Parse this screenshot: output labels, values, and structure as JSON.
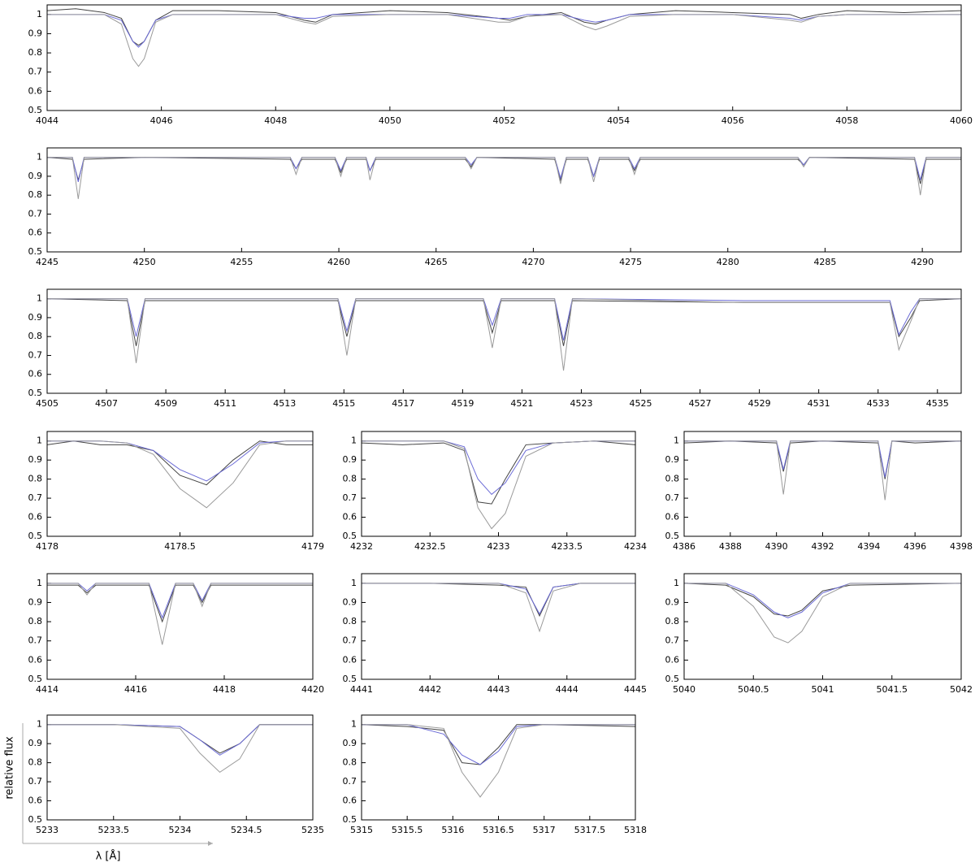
{
  "chart_data": [
    {
      "type": "line",
      "xlim": [
        4044,
        4060
      ],
      "xticks": [
        4044,
        4046,
        4048,
        4050,
        4052,
        4054,
        4056,
        4058,
        4060
      ],
      "ylim": [
        0.5,
        1.05
      ],
      "yticks": [
        0.5,
        0.6,
        0.7,
        0.8,
        0.9,
        1
      ],
      "x": [
        4044,
        4044.5,
        4045,
        4045.3,
        4045.5,
        4045.6,
        4045.7,
        4045.9,
        4046.2,
        4047,
        4048,
        4048.5,
        4048.7,
        4049,
        4050,
        4051,
        4051.9,
        4052.1,
        4052.4,
        4053,
        4053.4,
        4053.6,
        4053.8,
        4054.2,
        4055,
        4056,
        4057,
        4057.2,
        4057.5,
        4058,
        4059,
        4060
      ],
      "series": [
        {
          "color": "#444444",
          "values": [
            1.02,
            1.03,
            1.01,
            0.98,
            0.86,
            0.84,
            0.86,
            0.97,
            1.02,
            1.02,
            1.01,
            0.97,
            0.96,
            1.0,
            1.02,
            1.01,
            0.98,
            0.97,
            0.99,
            1.01,
            0.96,
            0.95,
            0.97,
            1.0,
            1.02,
            1.01,
            1.0,
            0.98,
            1.0,
            1.02,
            1.01,
            1.02
          ]
        },
        {
          "color": "#6b6bd6",
          "values": [
            1,
            1,
            1,
            0.97,
            0.86,
            0.83,
            0.86,
            0.97,
            1,
            1,
            1,
            0.98,
            0.98,
            1,
            1,
            1,
            0.98,
            0.98,
            1,
            1,
            0.97,
            0.96,
            0.97,
            1,
            1,
            1,
            0.98,
            0.97,
            0.99,
            1,
            1,
            1
          ]
        },
        {
          "color": "#9a9a9a",
          "values": [
            1,
            1,
            1,
            0.95,
            0.77,
            0.73,
            0.77,
            0.96,
            1,
            1,
            1,
            0.96,
            0.95,
            0.99,
            1,
            1,
            0.96,
            0.96,
            0.99,
            1,
            0.94,
            0.92,
            0.94,
            0.99,
            1,
            1,
            0.97,
            0.96,
            0.99,
            1,
            1,
            1
          ]
        }
      ]
    },
    {
      "type": "line",
      "xlim": [
        4245,
        4292
      ],
      "xticks": [
        4245,
        4250,
        4255,
        4260,
        4265,
        4270,
        4275,
        4280,
        4285,
        4290
      ],
      "ylim": [
        0.5,
        1.05
      ],
      "yticks": [
        0.5,
        0.6,
        0.7,
        0.8,
        0.9,
        1
      ],
      "x": [
        4245,
        4246.3,
        4246.6,
        4246.9,
        4250,
        4257.5,
        4257.8,
        4258.1,
        4259.8,
        4260.1,
        4260.4,
        4261.4,
        4261.6,
        4261.9,
        4266.5,
        4266.8,
        4267.1,
        4271.1,
        4271.4,
        4271.7,
        4272.8,
        4273.1,
        4273.4,
        4274.9,
        4275.2,
        4275.5,
        4283.6,
        4283.9,
        4284.2,
        4289.6,
        4289.9,
        4290.2,
        4292
      ],
      "series": [
        {
          "color": "#444444",
          "values": [
            1,
            0.99,
            0.88,
            0.99,
            1,
            0.99,
            0.94,
            0.99,
            0.99,
            0.92,
            0.99,
            0.99,
            0.93,
            0.99,
            0.99,
            0.95,
            1,
            0.99,
            0.88,
            0.99,
            0.99,
            0.9,
            0.99,
            0.99,
            0.93,
            0.99,
            0.99,
            0.96,
            1,
            0.99,
            0.86,
            0.99,
            0.99
          ]
        },
        {
          "color": "#6b6bd6",
          "values": [
            1,
            1,
            0.87,
            1,
            1,
            1,
            0.94,
            1,
            1,
            0.93,
            1,
            1,
            0.93,
            1,
            1,
            0.96,
            1,
            1,
            0.89,
            1,
            1,
            0.9,
            1,
            1,
            0.94,
            1,
            1,
            0.96,
            1,
            1,
            0.88,
            1,
            1
          ]
        },
        {
          "color": "#9a9a9a",
          "values": [
            1,
            1,
            0.78,
            1,
            1,
            1,
            0.91,
            1,
            1,
            0.9,
            1,
            1,
            0.88,
            1,
            1,
            0.94,
            1,
            1,
            0.86,
            1,
            1,
            0.87,
            1,
            1,
            0.91,
            1,
            1,
            0.95,
            1,
            1,
            0.8,
            1,
            1
          ]
        }
      ]
    },
    {
      "type": "line",
      "xlim": [
        4505,
        4535.8
      ],
      "xticks": [
        4505,
        4507,
        4509,
        4511,
        4513,
        4515,
        4517,
        4519,
        4521,
        4523,
        4525,
        4527,
        4529,
        4531,
        4533,
        4535
      ],
      "ylim": [
        0.5,
        1.05
      ],
      "yticks": [
        0.5,
        0.6,
        0.7,
        0.8,
        0.9,
        1
      ],
      "x": [
        4505,
        4507.7,
        4508,
        4508.3,
        4514.8,
        4515.1,
        4515.4,
        4519.7,
        4520,
        4520.3,
        4522.1,
        4522.4,
        4522.7,
        4528.5,
        4533.4,
        4533.7,
        4534.1,
        4534.4,
        4535.8
      ],
      "series": [
        {
          "color": "#444444",
          "values": [
            1,
            0.99,
            0.75,
            0.99,
            0.99,
            0.8,
            0.99,
            0.99,
            0.82,
            0.99,
            0.99,
            0.75,
            0.99,
            0.98,
            0.98,
            0.8,
            0.9,
            0.99,
            1
          ]
        },
        {
          "color": "#6b6bd6",
          "values": [
            1,
            1,
            0.8,
            1,
            1,
            0.83,
            1,
            1,
            0.86,
            1,
            1,
            0.78,
            1,
            0.99,
            0.99,
            0.81,
            0.93,
            1,
            1
          ]
        },
        {
          "color": "#9a9a9a",
          "values": [
            1,
            1,
            0.66,
            1,
            1,
            0.7,
            1,
            1,
            0.74,
            1,
            1,
            0.62,
            1,
            0.98,
            0.98,
            0.73,
            0.88,
            1,
            1
          ]
        }
      ]
    },
    {
      "type": "line",
      "xlim": [
        4178,
        4179
      ],
      "xticks": [
        4178,
        4178.5,
        4179
      ],
      "ylim": [
        0.5,
        1.05
      ],
      "yticks": [
        0.5,
        0.6,
        0.7,
        0.8,
        0.9,
        1
      ],
      "x": [
        4178,
        4178.1,
        4178.2,
        4178.3,
        4178.4,
        4178.5,
        4178.6,
        4178.7,
        4178.8,
        4178.9,
        4179
      ],
      "series": [
        {
          "color": "#444444",
          "values": [
            0.98,
            1,
            0.98,
            0.98,
            0.95,
            0.82,
            0.77,
            0.9,
            1,
            0.98,
            0.98
          ]
        },
        {
          "color": "#6b6bd6",
          "values": [
            1,
            1,
            1,
            0.99,
            0.95,
            0.85,
            0.79,
            0.88,
            0.99,
            1,
            1
          ]
        },
        {
          "color": "#9a9a9a",
          "values": [
            1,
            1,
            1,
            0.99,
            0.93,
            0.75,
            0.65,
            0.78,
            0.98,
            1,
            1
          ]
        }
      ]
    },
    {
      "type": "line",
      "xlim": [
        4232,
        4234
      ],
      "xticks": [
        4232,
        4232.5,
        4233,
        4233.5,
        4234
      ],
      "ylim": [
        0.5,
        1.05
      ],
      "yticks": [
        0.5,
        0.6,
        0.7,
        0.8,
        0.9,
        1
      ],
      "x": [
        4232,
        4232.3,
        4232.6,
        4232.75,
        4232.85,
        4232.95,
        4233.05,
        4233.2,
        4233.4,
        4233.7,
        4234
      ],
      "series": [
        {
          "color": "#444444",
          "values": [
            0.99,
            0.98,
            0.99,
            0.95,
            0.68,
            0.67,
            0.8,
            0.98,
            0.99,
            1,
            0.98
          ]
        },
        {
          "color": "#6b6bd6",
          "values": [
            1,
            1,
            1,
            0.97,
            0.8,
            0.72,
            0.78,
            0.95,
            0.99,
            1,
            1
          ]
        },
        {
          "color": "#9a9a9a",
          "values": [
            1,
            1,
            1,
            0.96,
            0.65,
            0.54,
            0.62,
            0.92,
            0.99,
            1,
            1
          ]
        }
      ]
    },
    {
      "type": "line",
      "xlim": [
        4386,
        4398
      ],
      "xticks": [
        4386,
        4388,
        4390,
        4392,
        4394,
        4396,
        4398
      ],
      "ylim": [
        0.5,
        1.05
      ],
      "yticks": [
        0.5,
        0.6,
        0.7,
        0.8,
        0.9,
        1
      ],
      "x": [
        4386,
        4388,
        4390,
        4390.3,
        4390.6,
        4392,
        4394.4,
        4394.7,
        4395,
        4396,
        4398
      ],
      "series": [
        {
          "color": "#444444",
          "values": [
            0.99,
            1,
            0.99,
            0.84,
            0.99,
            1,
            0.99,
            0.8,
            1,
            0.99,
            1
          ]
        },
        {
          "color": "#6b6bd6",
          "values": [
            1,
            1,
            1,
            0.85,
            1,
            1,
            1,
            0.81,
            1,
            1,
            1
          ]
        },
        {
          "color": "#9a9a9a",
          "values": [
            1,
            1,
            1,
            0.72,
            1,
            1,
            1,
            0.69,
            1,
            1,
            1
          ]
        }
      ]
    },
    {
      "type": "line",
      "xlim": [
        4414,
        4420
      ],
      "xticks": [
        4414,
        4416,
        4418,
        4420
      ],
      "ylim": [
        0.5,
        1.05
      ],
      "yticks": [
        0.5,
        0.6,
        0.7,
        0.8,
        0.9,
        1
      ],
      "x": [
        4414,
        4414.7,
        4414.9,
        4415.1,
        4416.3,
        4416.6,
        4416.9,
        4417.3,
        4417.5,
        4417.7,
        4420
      ],
      "series": [
        {
          "color": "#444444",
          "values": [
            0.99,
            0.99,
            0.95,
            0.99,
            0.99,
            0.8,
            0.99,
            0.99,
            0.9,
            0.99,
            0.99
          ]
        },
        {
          "color": "#6b6bd6",
          "values": [
            1,
            1,
            0.96,
            1,
            1,
            0.82,
            1,
            1,
            0.91,
            1,
            1
          ]
        },
        {
          "color": "#9a9a9a",
          "values": [
            1,
            1,
            0.94,
            1,
            1,
            0.68,
            1,
            1,
            0.88,
            1,
            1
          ]
        }
      ]
    },
    {
      "type": "line",
      "xlim": [
        4441,
        4445
      ],
      "xticks": [
        4441,
        4442,
        4443,
        4444,
        4445
      ],
      "ylim": [
        0.5,
        1.05
      ],
      "yticks": [
        0.5,
        0.6,
        0.7,
        0.8,
        0.9,
        1
      ],
      "x": [
        4441,
        4442,
        4443,
        4443.4,
        4443.6,
        4443.8,
        4444.2,
        4445
      ],
      "series": [
        {
          "color": "#444444",
          "values": [
            1,
            1,
            0.99,
            0.98,
            0.83,
            0.98,
            1,
            1
          ]
        },
        {
          "color": "#6b6bd6",
          "values": [
            1,
            1,
            1,
            0.97,
            0.84,
            0.98,
            1,
            1
          ]
        },
        {
          "color": "#9a9a9a",
          "values": [
            1,
            1,
            1,
            0.95,
            0.75,
            0.96,
            1,
            1
          ]
        }
      ]
    },
    {
      "type": "line",
      "xlim": [
        5040,
        5042
      ],
      "xticks": [
        5040,
        5040.5,
        5041,
        5041.5,
        5042
      ],
      "ylim": [
        0.5,
        1.05
      ],
      "yticks": [
        0.5,
        0.6,
        0.7,
        0.8,
        0.9,
        1
      ],
      "x": [
        5040,
        5040.3,
        5040.5,
        5040.65,
        5040.75,
        5040.85,
        5041,
        5041.2,
        5042
      ],
      "series": [
        {
          "color": "#444444",
          "values": [
            1,
            0.99,
            0.93,
            0.84,
            0.83,
            0.86,
            0.96,
            0.99,
            1
          ]
        },
        {
          "color": "#6b6bd6",
          "values": [
            1,
            1,
            0.94,
            0.85,
            0.82,
            0.85,
            0.95,
            1,
            1
          ]
        },
        {
          "color": "#9a9a9a",
          "values": [
            1,
            1,
            0.88,
            0.72,
            0.69,
            0.75,
            0.93,
            1,
            1
          ]
        }
      ]
    },
    {
      "type": "line",
      "xlim": [
        5233,
        5235
      ],
      "xticks": [
        5233,
        5233.5,
        5234,
        5234.5,
        5235
      ],
      "ylim": [
        0.5,
        1.05
      ],
      "yticks": [
        0.5,
        0.6,
        0.7,
        0.8,
        0.9,
        1
      ],
      "x": [
        5233,
        5233.5,
        5234,
        5234.15,
        5234.3,
        5234.45,
        5234.6,
        5235
      ],
      "series": [
        {
          "color": "#444444",
          "values": [
            1,
            1,
            0.99,
            0.92,
            0.85,
            0.9,
            1,
            1
          ]
        },
        {
          "color": "#6b6bd6",
          "values": [
            1,
            1,
            0.99,
            0.92,
            0.84,
            0.9,
            1,
            1
          ]
        },
        {
          "color": "#9a9a9a",
          "values": [
            1,
            1,
            0.98,
            0.85,
            0.75,
            0.82,
            1,
            1
          ]
        }
      ]
    },
    {
      "type": "line",
      "xlim": [
        5315,
        5318
      ],
      "xticks": [
        5315,
        5315.5,
        5316,
        5316.5,
        5317,
        5317.5,
        5318
      ],
      "ylim": [
        0.5,
        1.05
      ],
      "yticks": [
        0.5,
        0.6,
        0.7,
        0.8,
        0.9,
        1
      ],
      "x": [
        5315,
        5315.5,
        5315.9,
        5316.1,
        5316.3,
        5316.5,
        5316.7,
        5317,
        5318
      ],
      "series": [
        {
          "color": "#444444",
          "values": [
            1,
            0.99,
            0.97,
            0.8,
            0.79,
            0.88,
            1,
            1,
            0.99
          ]
        },
        {
          "color": "#6b6bd6",
          "values": [
            1,
            1,
            0.95,
            0.84,
            0.79,
            0.86,
            0.99,
            1,
            1
          ]
        },
        {
          "color": "#9a9a9a",
          "values": [
            1,
            1,
            0.98,
            0.75,
            0.62,
            0.75,
            0.98,
            1,
            1
          ]
        }
      ]
    }
  ],
  "axis_labels": {
    "y": "relative flux",
    "x": "λ [Å]"
  }
}
